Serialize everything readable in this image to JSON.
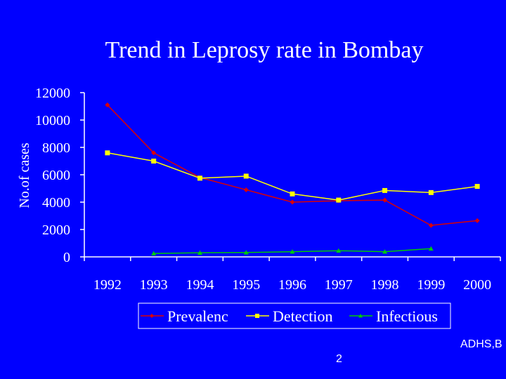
{
  "chart_data": {
    "type": "line",
    "title": "Trend in Leprosy rate in Bombay",
    "xlabel": "",
    "ylabel": "No.of cases",
    "ylim": [
      0,
      12000
    ],
    "yticks": [
      0,
      2000,
      4000,
      6000,
      8000,
      10000,
      12000
    ],
    "categories": [
      "1992",
      "1993",
      "1994",
      "1995",
      "1996",
      "1997",
      "1998",
      "1999",
      "2000"
    ],
    "legend_position": "bottom",
    "grid": false,
    "series": [
      {
        "name": "Prevalenc",
        "color": "#dd0000",
        "marker": "diamond",
        "values": [
          11100,
          7600,
          5800,
          4900,
          4000,
          4100,
          4150,
          2300,
          2650
        ]
      },
      {
        "name": "Detection",
        "color": "#ffff00",
        "marker": "square",
        "values": [
          7600,
          7000,
          5750,
          5900,
          4600,
          4150,
          4850,
          4700,
          5150
        ]
      },
      {
        "name": "Infectious",
        "color": "#00cc00",
        "marker": "triangle",
        "values": [
          null,
          250,
          300,
          320,
          380,
          450,
          380,
          600,
          null
        ]
      }
    ]
  },
  "footer": {
    "source": "ADHS,B",
    "page_number": "2"
  },
  "colors": {
    "background": "#0000ff",
    "text": "#ffffff",
    "axis": "#ffffff"
  }
}
